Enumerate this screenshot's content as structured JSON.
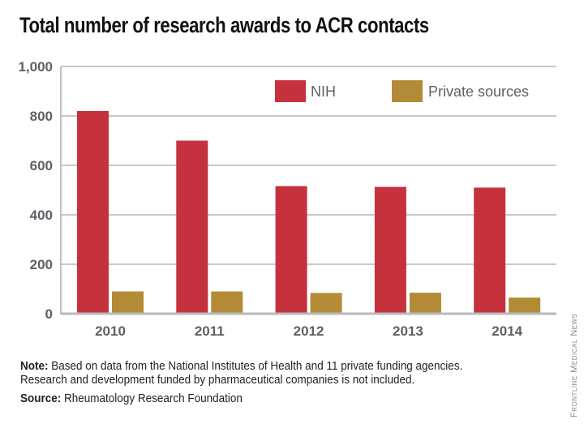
{
  "chart_data": {
    "type": "bar",
    "title": "Total number of research awards to ACR contacts",
    "xlabel": "",
    "ylabel": "",
    "categories": [
      "2010",
      "2011",
      "2012",
      "2013",
      "2014"
    ],
    "series": [
      {
        "name": "NIH",
        "color": "#C5323E",
        "values": [
          820,
          700,
          516,
          513,
          510
        ]
      },
      {
        "name": "Private sources",
        "color": "#B38B37",
        "values": [
          90,
          90,
          84,
          85,
          65
        ]
      }
    ],
    "ylim": [
      0,
      1000
    ],
    "yticks": [
      0,
      200,
      400,
      600,
      800,
      1000
    ],
    "ytick_labels": [
      "0",
      "200",
      "400",
      "600",
      "800",
      "1,000"
    ],
    "grid": true,
    "legend_position": "top-right"
  },
  "notes": {
    "note_label": "Note:",
    "note_text": " Based on data from the National Institutes of Health and 11 private funding agencies.",
    "note_text_2": "Research and development funded by pharmaceutical companies is not included.",
    "source_label": "Source:",
    "source_text": " Rheumatology Research Foundation"
  },
  "credit": "Frontline Medical News"
}
